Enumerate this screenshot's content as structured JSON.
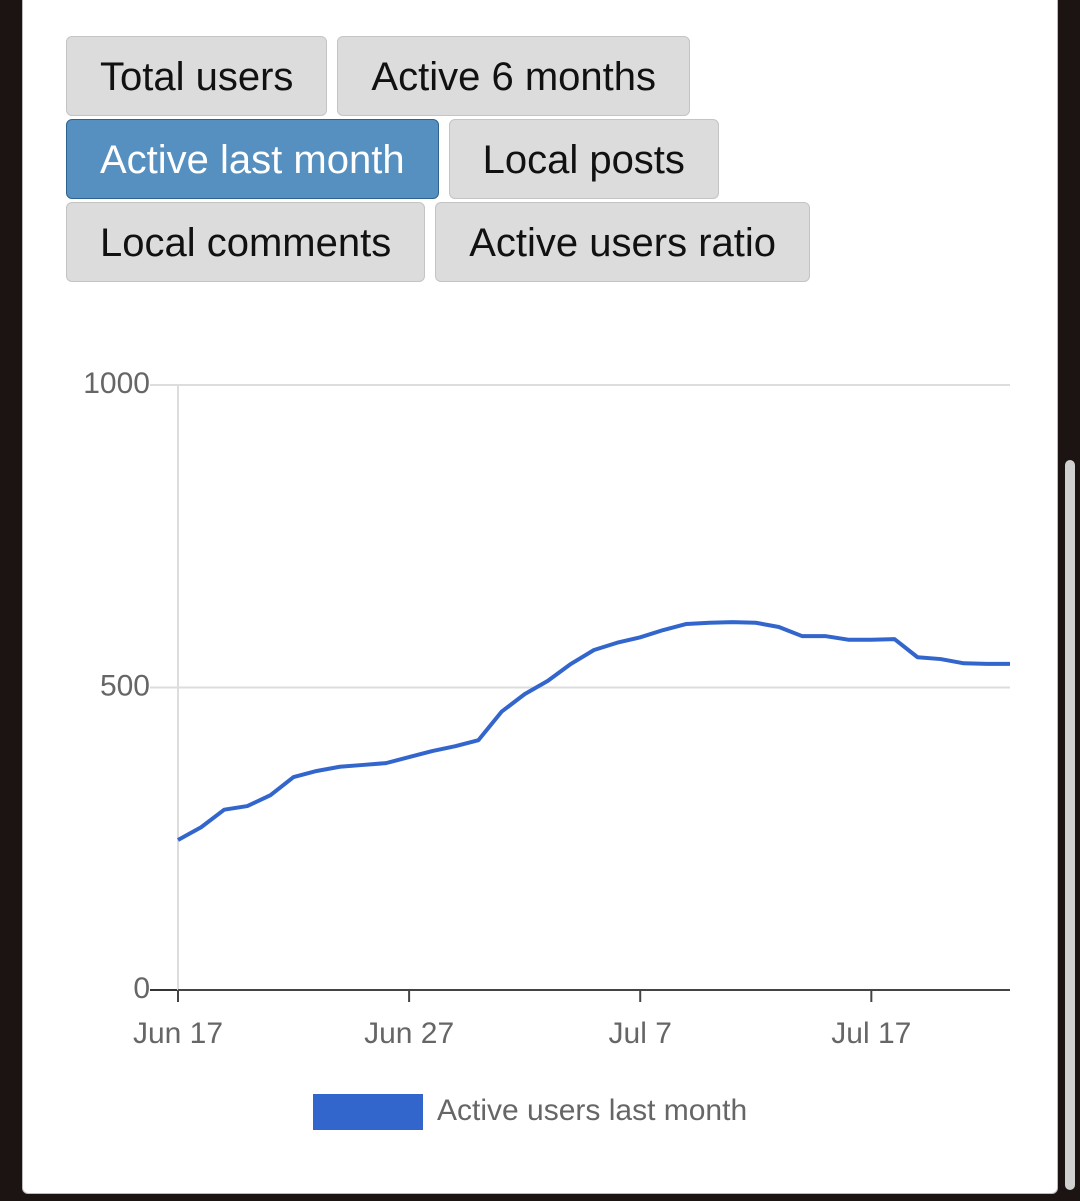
{
  "buttons": [
    {
      "label": "Total users",
      "selected": false
    },
    {
      "label": "Active 6 months",
      "selected": false
    },
    {
      "label": "Active last month",
      "selected": true
    },
    {
      "label": "Local posts",
      "selected": false
    },
    {
      "label": "Local comments",
      "selected": false
    },
    {
      "label": "Active users ratio",
      "selected": false
    }
  ],
  "chart_data": {
    "type": "line",
    "categories": [
      "Jun 17",
      null,
      null,
      null,
      null,
      null,
      null,
      null,
      null,
      null,
      "Jun 27",
      null,
      null,
      null,
      null,
      null,
      null,
      null,
      null,
      null,
      "Jul 7",
      null,
      null,
      null,
      null,
      null,
      null,
      null,
      null,
      null,
      "Jul 17",
      null,
      null,
      null,
      null,
      null,
      null
    ],
    "series": [
      {
        "name": "Active users last month",
        "color": "#3366cc",
        "values": [
          248,
          269,
          298,
          304,
          322,
          352,
          362,
          369,
          372,
          375,
          385,
          395,
          403,
          413,
          460,
          489,
          511,
          539,
          562,
          574,
          583,
          595,
          605,
          607,
          608,
          607,
          600,
          585,
          585,
          579,
          579,
          580,
          550,
          547,
          540,
          539,
          539
        ]
      }
    ],
    "ylim": [
      0,
      1000
    ],
    "yticks": [
      0,
      500,
      1000
    ],
    "grid": true,
    "legend": "bottom"
  }
}
